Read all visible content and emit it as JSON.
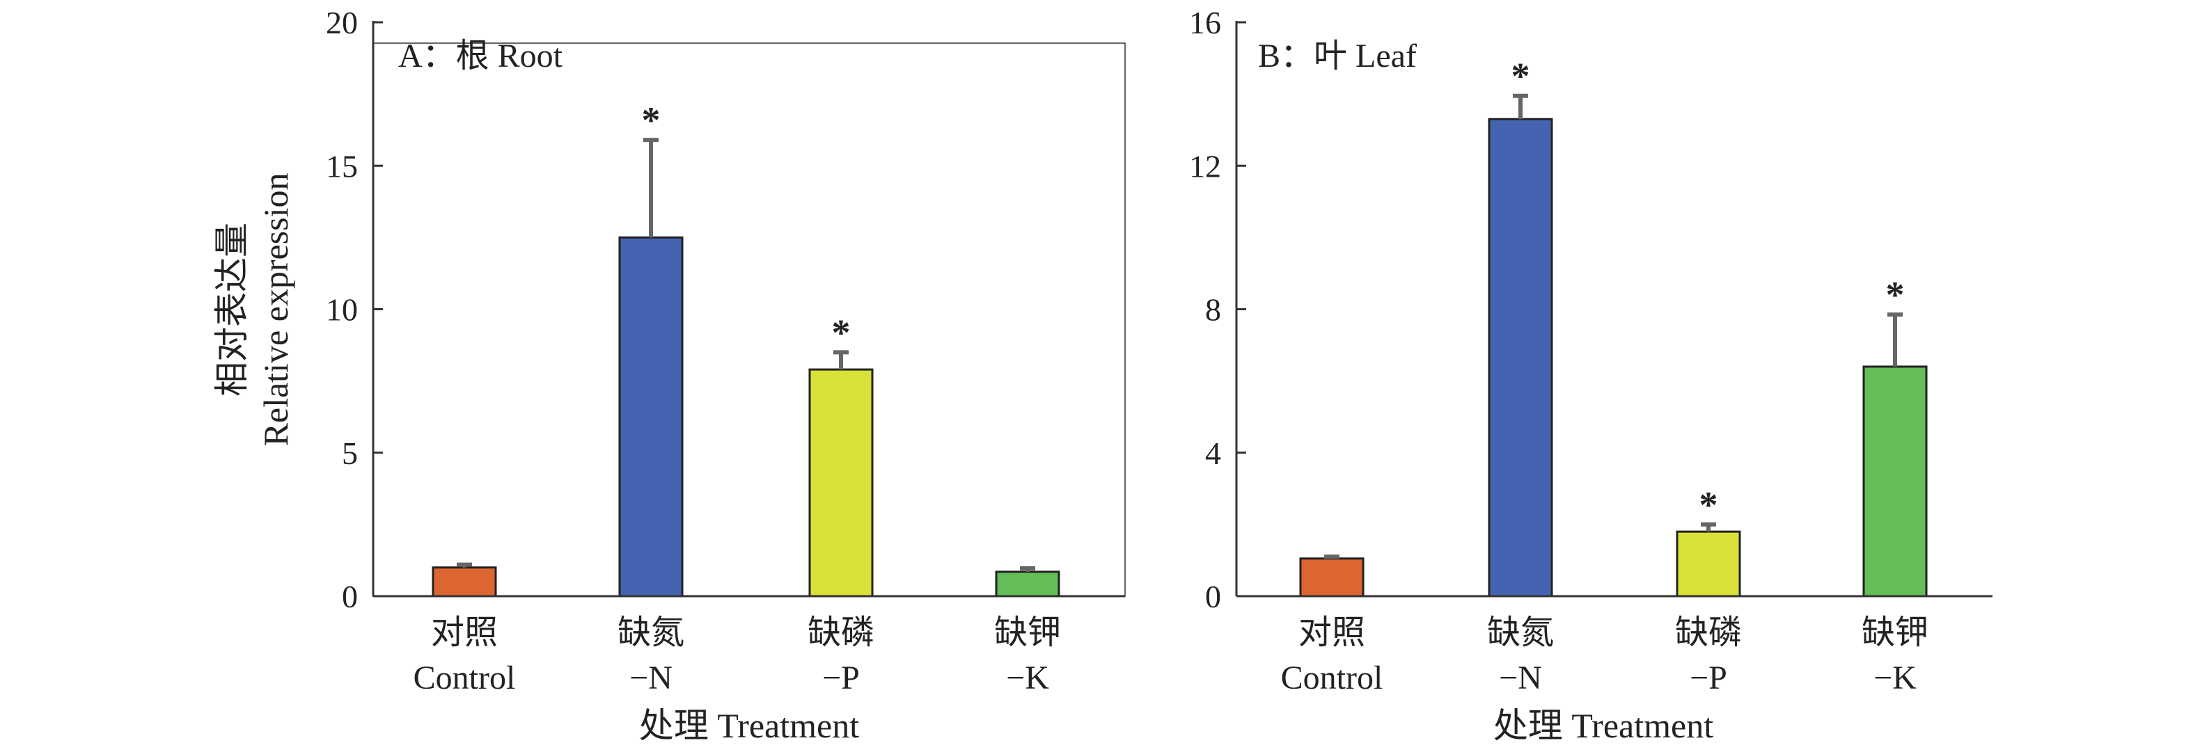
{
  "chart_data": [
    {
      "type": "bar",
      "panel_label": "A：根 Root",
      "ylabel_cn": "相对表达量",
      "ylabel_en": "Relative expression",
      "xlabel": "处理 Treatment",
      "ylim": [
        0,
        20
      ],
      "yticks": [
        "0",
        "5",
        "10",
        "15",
        "20"
      ],
      "categories": [
        {
          "cn": "对照",
          "en": "Control"
        },
        {
          "cn": "缺氮",
          "en": "−N"
        },
        {
          "cn": "缺磷",
          "en": "−P"
        },
        {
          "cn": "缺钾",
          "en": "−K"
        }
      ],
      "values": [
        1.0,
        12.5,
        7.9,
        0.85
      ],
      "errors": [
        0.1,
        3.4,
        0.6,
        0.12
      ],
      "significant": [
        "",
        "*",
        "*",
        ""
      ],
      "colors": [
        "#DD6531",
        "#4463B0",
        "#D8E137",
        "#63BE58"
      ]
    },
    {
      "type": "bar",
      "panel_label": "B：叶 Leaf",
      "xlabel": "处理 Treatment",
      "ylim": [
        0,
        16
      ],
      "yticks": [
        "0",
        "4",
        "8",
        "12",
        "16"
      ],
      "categories": [
        {
          "cn": "对照",
          "en": "Control"
        },
        {
          "cn": "缺氮",
          "en": "−N"
        },
        {
          "cn": "缺磷",
          "en": "−P"
        },
        {
          "cn": "缺钾",
          "en": "−K"
        }
      ],
      "values": [
        1.05,
        13.3,
        1.8,
        6.4
      ],
      "errors": [
        0.05,
        0.65,
        0.2,
        1.45
      ],
      "significant": [
        "",
        "*",
        "*",
        "*"
      ],
      "colors": [
        "#DD6531",
        "#4463B0",
        "#D8E137",
        "#63BE58"
      ]
    }
  ]
}
